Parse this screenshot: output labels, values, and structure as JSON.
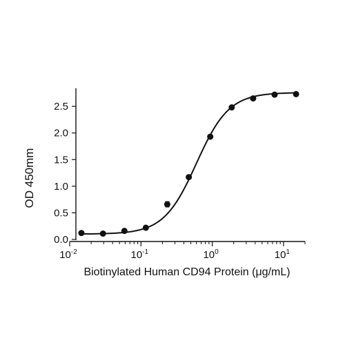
{
  "chart_data": {
    "type": "scatter",
    "title": "",
    "xlabel": "Biotinylated Human CD94 Protein (μg/mL)",
    "ylabel": "OD 450mm",
    "x_scale": "log",
    "xlim": [
      0.01,
      20
    ],
    "ylim": [
      0,
      2.8
    ],
    "x_ticks": [
      {
        "value": 0.01,
        "base": "10",
        "exp": "-2"
      },
      {
        "value": 0.1,
        "base": "10",
        "exp": "-1"
      },
      {
        "value": 1,
        "base": "10",
        "exp": "0"
      },
      {
        "value": 10,
        "base": "10",
        "exp": "1"
      }
    ],
    "y_ticks": [
      {
        "value": 0,
        "label": "0.0"
      },
      {
        "value": 0.5,
        "label": "0.5"
      },
      {
        "value": 1.0,
        "label": "1.0"
      },
      {
        "value": 1.5,
        "label": "1.5"
      },
      {
        "value": 2.0,
        "label": "2.0"
      },
      {
        "value": 2.5,
        "label": "2.5"
      }
    ],
    "grid": false,
    "series": [
      {
        "points": [
          {
            "x": 0.0146,
            "y": 0.12
          },
          {
            "x": 0.0293,
            "y": 0.11
          },
          {
            "x": 0.0586,
            "y": 0.16
          },
          {
            "x": 0.117,
            "y": 0.22
          },
          {
            "x": 0.234,
            "y": 0.66,
            "err": 0.05
          },
          {
            "x": 0.469,
            "y": 1.17
          },
          {
            "x": 0.938,
            "y": 1.93
          },
          {
            "x": 1.875,
            "y": 2.48
          },
          {
            "x": 3.75,
            "y": 2.65
          },
          {
            "x": 7.5,
            "y": 2.72
          },
          {
            "x": 15,
            "y": 2.73
          }
        ],
        "fit": {
          "model": "4PL",
          "bottom": 0.1,
          "top": 2.76,
          "ec50": 0.6,
          "hill": 1.9
        }
      }
    ]
  }
}
